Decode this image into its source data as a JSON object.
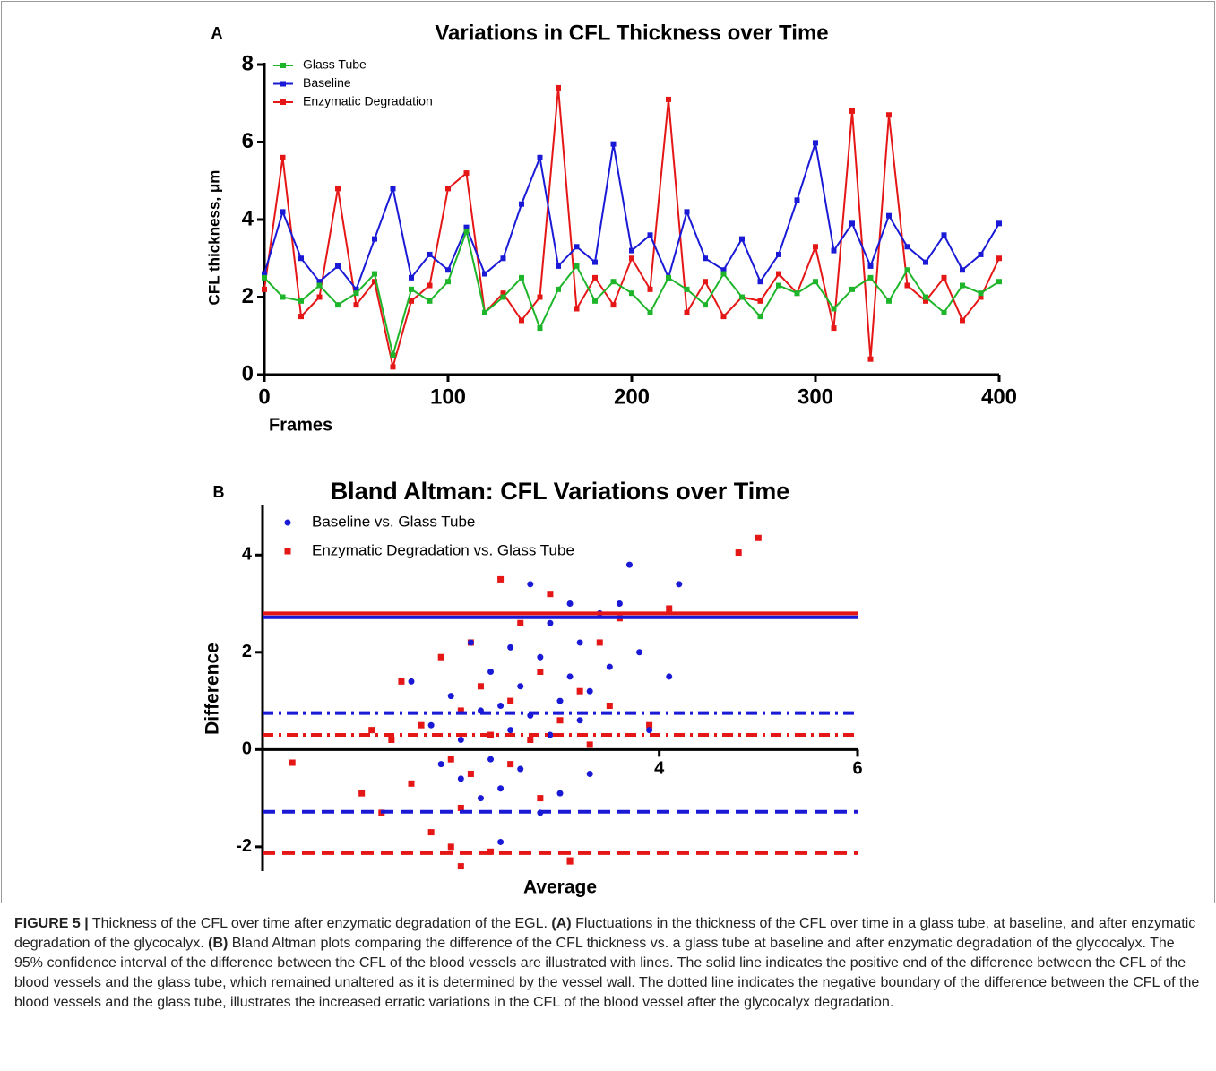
{
  "chart_data": [
    {
      "type": "line",
      "panel_label": "A",
      "title": "Variations in CFL Thickness over Time",
      "x_label": "Frames",
      "y_label": "CFL thickness, μm",
      "x": [
        0,
        10,
        20,
        30,
        40,
        50,
        60,
        70,
        80,
        90,
        100,
        110,
        120,
        130,
        140,
        150,
        160,
        170,
        180,
        190,
        200,
        210,
        220,
        230,
        240,
        250,
        260,
        270,
        280,
        290,
        300,
        310,
        320,
        330,
        340,
        350,
        360,
        370,
        380,
        390,
        400
      ],
      "series": [
        {
          "name": "Glass Tube",
          "color": "#1fb52b",
          "marker": "square",
          "values": [
            2.5,
            2.0,
            1.9,
            2.3,
            1.8,
            2.1,
            2.6,
            0.5,
            2.2,
            1.9,
            2.4,
            3.7,
            1.6,
            2.0,
            2.5,
            1.2,
            2.2,
            2.8,
            1.9,
            2.4,
            2.1,
            1.6,
            2.5,
            2.2,
            1.8,
            2.6,
            2.0,
            1.5,
            2.3,
            2.1,
            2.4,
            1.7,
            2.2,
            2.5,
            1.9,
            2.7,
            2.0,
            1.6,
            2.3,
            2.1,
            2.4
          ]
        },
        {
          "name": "Baseline",
          "color": "#1a1ad6",
          "marker": "square",
          "values": [
            2.6,
            4.2,
            3.0,
            2.4,
            2.8,
            2.2,
            3.5,
            4.8,
            2.5,
            3.1,
            2.7,
            3.8,
            2.6,
            3.0,
            4.4,
            5.6,
            2.8,
            3.3,
            2.9,
            5.95,
            3.2,
            3.6,
            2.5,
            4.2,
            3.0,
            2.7,
            3.5,
            2.4,
            3.1,
            4.5,
            5.98,
            3.2,
            3.9,
            2.8,
            4.1,
            3.3,
            2.9,
            3.6,
            2.7,
            3.1,
            3.9
          ]
        },
        {
          "name": "Enzymatic Degradation",
          "color": "#e51616",
          "marker": "square",
          "values": [
            2.2,
            5.6,
            1.5,
            2.0,
            4.8,
            1.8,
            2.4,
            0.2,
            1.9,
            2.3,
            4.8,
            5.2,
            1.6,
            2.1,
            1.4,
            2.0,
            7.4,
            1.7,
            2.5,
            1.8,
            3.0,
            2.2,
            7.1,
            1.6,
            2.4,
            1.5,
            2.0,
            1.9,
            2.6,
            2.1,
            3.3,
            1.2,
            6.8,
            0.4,
            6.7,
            2.3,
            1.9,
            2.5,
            1.4,
            2.0,
            3.0
          ]
        }
      ],
      "xlim": [
        0,
        400
      ],
      "xticks": [
        0,
        100,
        200,
        300,
        400
      ],
      "ylim": [
        0,
        8
      ],
      "yticks": [
        0,
        2,
        4,
        6,
        8
      ],
      "legend": "top-left"
    },
    {
      "type": "scatter",
      "panel_label": "B",
      "title": "Bland Altman: CFL Variations over Time",
      "x_label": "Average",
      "y_label": "Difference",
      "series": [
        {
          "name": "Baseline vs. Glass Tube",
          "color": "#1a1ad6",
          "marker": "circle",
          "x": [
            1.5,
            1.7,
            1.8,
            1.9,
            2.0,
            2.0,
            2.1,
            2.2,
            2.2,
            2.3,
            2.3,
            2.4,
            2.4,
            2.5,
            2.5,
            2.6,
            2.6,
            2.7,
            2.7,
            2.8,
            2.8,
            2.9,
            2.9,
            3.0,
            3.0,
            3.1,
            3.1,
            3.2,
            3.2,
            3.3,
            3.3,
            3.4,
            3.5,
            3.6,
            3.7,
            3.8,
            3.9,
            4.1,
            4.2,
            2.4
          ],
          "values": [
            1.4,
            0.5,
            -0.3,
            1.1,
            0.2,
            -0.6,
            2.2,
            0.8,
            -1.0,
            1.6,
            -0.2,
            0.9,
            -0.8,
            2.1,
            0.4,
            1.3,
            -0.4,
            3.4,
            0.7,
            1.9,
            -1.3,
            0.3,
            2.6,
            1.0,
            -0.9,
            1.5,
            3.0,
            0.6,
            2.2,
            1.2,
            -0.5,
            2.8,
            1.7,
            3.0,
            3.8,
            2.0,
            0.4,
            1.5,
            3.4,
            -1.9
          ]
        },
        {
          "name": "Enzymatic Degradation vs. Glass Tube",
          "color": "#e51616",
          "marker": "square",
          "x": [
            0.3,
            1.0,
            1.1,
            1.2,
            1.4,
            1.5,
            1.6,
            1.7,
            1.8,
            1.9,
            1.9,
            2.0,
            2.0,
            2.1,
            2.1,
            2.2,
            2.3,
            2.3,
            2.4,
            2.5,
            2.5,
            2.6,
            2.7,
            2.8,
            2.8,
            2.9,
            3.0,
            3.1,
            3.2,
            3.3,
            3.4,
            3.5,
            3.6,
            3.9,
            4.1,
            4.8,
            5.0,
            3.1,
            2.0,
            1.3
          ],
          "values": [
            -0.27,
            -0.9,
            0.4,
            -1.3,
            1.4,
            -0.7,
            0.5,
            -1.7,
            1.9,
            -0.2,
            -2.0,
            0.8,
            -1.2,
            2.2,
            -0.5,
            1.3,
            -2.1,
            0.3,
            3.5,
            -0.3,
            1.0,
            2.6,
            0.2,
            1.6,
            -1.0,
            3.2,
            0.6,
            -2.3,
            1.2,
            0.1,
            2.2,
            0.9,
            2.7,
            0.5,
            2.9,
            4.05,
            4.35,
            -2.28,
            -2.4,
            0.2
          ]
        }
      ],
      "lines": [
        {
          "color": "#e51616",
          "style": "solid",
          "value": 2.8
        },
        {
          "color": "#1a1ad6",
          "style": "solid",
          "value": 2.72
        },
        {
          "color": "#1a1ad6",
          "style": "dashdot",
          "value": 0.75
        },
        {
          "color": "#e51616",
          "style": "dashdot",
          "value": 0.3
        },
        {
          "color": "#1a1ad6",
          "style": "dashed",
          "value": -1.28
        },
        {
          "color": "#e51616",
          "style": "dashed",
          "value": -2.13
        }
      ],
      "xlim": [
        0,
        6
      ],
      "xticks": [
        4,
        6
      ],
      "ylim": [
        -2.5,
        5
      ],
      "yticks": [
        -2,
        0,
        2,
        4
      ],
      "legend": "top-left"
    }
  ],
  "caption": {
    "figure_label": "FIGURE 5 |",
    "intro": " Thickness of the CFL over time after enzymatic degradation of the EGL. ",
    "a_label": "(A)",
    "a_text": " Fluctuations in the thickness of the CFL over time in a glass tube, at baseline, and after enzymatic degradation of the glycocalyx. ",
    "b_label": "(B)",
    "b_text": " Bland Altman plots comparing the difference of the CFL thickness vs. a glass tube at baseline and after enzymatic degradation of the glycocalyx. The 95% confidence interval of the difference between the CFL of the blood vessels are illustrated with lines. The solid line indicates the positive end of the difference between the CFL of the blood vessels and the glass tube, which remained unaltered as it is determined by the vessel wall. The dotted line indicates the negative boundary of the difference between the CFL of the blood vessels and the glass tube, illustrates the increased erratic variations in the CFL of the blood vessel after the glycocalyx degradation."
  }
}
